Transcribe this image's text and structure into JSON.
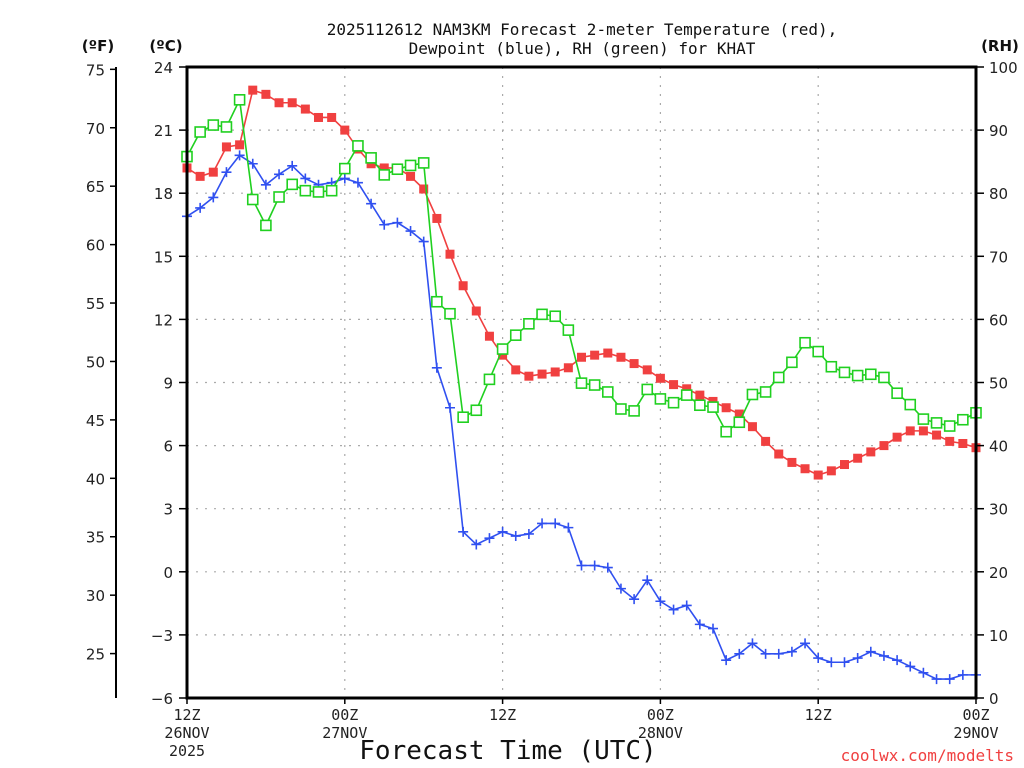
{
  "chart_data": {
    "type": "line",
    "title": [
      "2025112612 NAM3KM Forecast 2-meter Temperature (red),",
      "Dewpoint (blue), RH (green) for KHAT"
    ],
    "xlabel": "Forecast Time (UTC)",
    "credit": "coolwx.com/modelts",
    "x_range_hours": [
      0,
      60
    ],
    "x_ticks": [
      {
        "hour": 0,
        "lines": [
          "12Z",
          "26NOV",
          "2025"
        ]
      },
      {
        "hour": 12,
        "lines": [
          "00Z",
          "27NOV"
        ]
      },
      {
        "hour": 24,
        "lines": [
          "12Z"
        ]
      },
      {
        "hour": 36,
        "lines": [
          "00Z",
          "28NOV"
        ]
      },
      {
        "hour": 48,
        "lines": [
          "12Z"
        ]
      },
      {
        "hour": 60,
        "lines": [
          "00Z",
          "29NOV"
        ]
      }
    ],
    "y_celsius": {
      "label": "(ºC)",
      "range": [
        -6,
        24
      ],
      "ticks": [
        24,
        21,
        18,
        15,
        12,
        9,
        6,
        3,
        0,
        -3,
        -6
      ]
    },
    "y_fahrenheit": {
      "label": "(ºF)",
      "ticks": [
        75,
        70,
        65,
        60,
        55,
        50,
        45,
        40,
        35,
        30,
        25
      ]
    },
    "y_rh": {
      "label": "(RH)",
      "range": [
        0,
        100
      ],
      "ticks": [
        100,
        90,
        80,
        70,
        60,
        50,
        40,
        30,
        20,
        10,
        0
      ]
    },
    "grid": true,
    "series": [
      {
        "name": "Temperature",
        "unit": "C",
        "color": "#f04040",
        "marker": "filled-square",
        "values": [
          19.2,
          18.8,
          19.0,
          20.2,
          20.3,
          22.9,
          22.7,
          22.3,
          22.3,
          22.0,
          21.6,
          21.6,
          21.0,
          20.1,
          19.4,
          19.2,
          19.2,
          18.8,
          18.2,
          16.8,
          15.1,
          13.6,
          12.4,
          11.2,
          10.3,
          9.6,
          9.3,
          9.4,
          9.5,
          9.7,
          10.2,
          10.3,
          10.4,
          10.2,
          9.9,
          9.6,
          9.2,
          8.9,
          8.7,
          8.4,
          8.1,
          7.8,
          7.5,
          6.9,
          6.2,
          5.6,
          5.2,
          4.9,
          4.6,
          4.8,
          5.1,
          5.4,
          5.7,
          6.0,
          6.4,
          6.7,
          6.7,
          6.5,
          6.2,
          6.1,
          5.9
        ]
      },
      {
        "name": "Dewpoint",
        "unit": "C",
        "color": "#3050f0",
        "marker": "plus",
        "values": [
          16.9,
          17.3,
          17.8,
          19.0,
          19.8,
          19.4,
          18.4,
          18.9,
          19.3,
          18.7,
          18.4,
          18.5,
          18.7,
          18.5,
          17.5,
          16.5,
          16.6,
          16.2,
          15.7,
          9.7,
          7.8,
          1.9,
          1.3,
          1.6,
          1.9,
          1.7,
          1.8,
          2.3,
          2.3,
          2.1,
          0.3,
          0.3,
          0.2,
          -0.8,
          -1.3,
          -0.4,
          -1.4,
          -1.8,
          -1.6,
          -2.5,
          -2.7,
          -4.2,
          -3.9,
          -3.4,
          -3.9,
          -3.9,
          -3.8,
          -3.4,
          -4.1,
          -4.3,
          -4.3,
          -4.1,
          -3.8,
          -4.0,
          -4.2,
          -4.5,
          -4.8,
          -5.1,
          -5.1,
          -4.9,
          -4.9
        ]
      },
      {
        "name": "RH",
        "unit": "%",
        "color": "#20d020",
        "marker": "open-square",
        "values": [
          85.8,
          89.7,
          90.8,
          90.5,
          94.8,
          79.0,
          74.9,
          79.4,
          81.4,
          80.4,
          80.2,
          80.4,
          83.9,
          87.5,
          85.6,
          82.9,
          83.8,
          84.4,
          84.8,
          62.8,
          60.9,
          44.5,
          45.6,
          50.5,
          55.3,
          57.5,
          59.3,
          60.8,
          60.5,
          58.3,
          49.9,
          49.6,
          48.5,
          45.8,
          45.5,
          48.9,
          47.4,
          46.8,
          48.0,
          46.4,
          46.1,
          42.2,
          43.7,
          48.1,
          48.5,
          50.8,
          53.2,
          56.3,
          54.9,
          52.5,
          51.6,
          51.1,
          51.3,
          50.8,
          48.3,
          46.5,
          44.2,
          43.6,
          43.1,
          44.1,
          45.2
        ]
      }
    ]
  }
}
